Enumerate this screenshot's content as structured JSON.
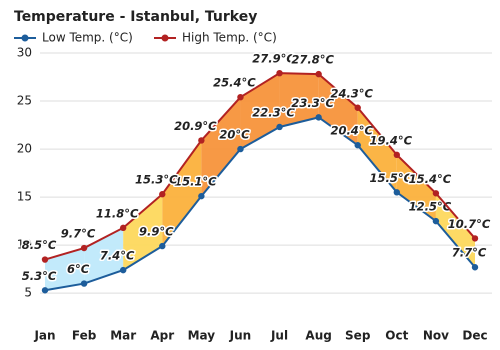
{
  "chart_data": {
    "type": "line",
    "title": "Temperature - Istanbul, Turkey",
    "categories": [
      "Jan",
      "Feb",
      "Mar",
      "Apr",
      "May",
      "Jun",
      "Jul",
      "Aug",
      "Sep",
      "Oct",
      "Nov",
      "Dec"
    ],
    "series": [
      {
        "name": "Low Temp. (°C)",
        "color": "#1d5d9b",
        "values": [
          5.3,
          6,
          7.4,
          9.9,
          15.1,
          20,
          22.3,
          23.3,
          20.4,
          15.5,
          12.5,
          7.7
        ],
        "value_labels": [
          "5.3°C",
          "6°C",
          "7.4°C",
          "9.9°C",
          "15.1°C",
          "20°C",
          "22.3°C",
          "23.3°C",
          "20.4°C",
          "15.5°C",
          "12.5°C",
          "7.7°C"
        ]
      },
      {
        "name": "High Temp. (°C)",
        "color": "#b22222",
        "values": [
          8.5,
          9.7,
          11.8,
          15.3,
          20.9,
          25.4,
          27.9,
          27.8,
          24.3,
          19.4,
          15.4,
          10.7
        ],
        "value_labels": [
          "8.5°C",
          "9.7°C",
          "11.8°C",
          "15.3°C",
          "20.9°C",
          "25.4°C",
          "27.9°C",
          "27.8°C",
          "24.3°C",
          "19.4°C",
          "15.4°C",
          "10.7°C"
        ]
      }
    ],
    "ylim": [
      2,
      30
    ],
    "yticks": [
      5,
      10,
      15,
      20,
      25,
      30
    ],
    "grid": true
  }
}
